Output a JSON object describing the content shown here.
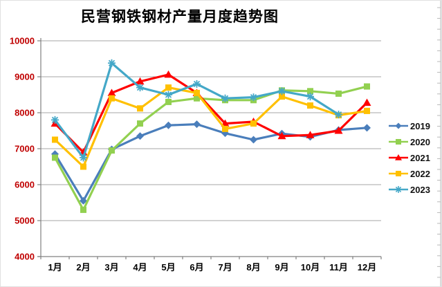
{
  "chart_data": {
    "type": "line",
    "title": "民营钢铁钢材产量月度趋势图",
    "categories": [
      "1月",
      "2月",
      "3月",
      "4月",
      "5月",
      "6月",
      "7月",
      "8月",
      "9月",
      "10月",
      "11月",
      "12月"
    ],
    "series": [
      {
        "name": "2019",
        "color": "#4A7EBB",
        "marker": "diamond",
        "values": [
          6850,
          5550,
          6980,
          7350,
          7650,
          7680,
          7430,
          7250,
          7420,
          7330,
          7520,
          7580
        ]
      },
      {
        "name": "2020",
        "color": "#92D050",
        "marker": "square",
        "values": [
          6750,
          5300,
          6950,
          7700,
          8300,
          8400,
          8350,
          8350,
          8620,
          8600,
          8530,
          8730
        ]
      },
      {
        "name": "2021",
        "color": "#FF0000",
        "marker": "triangle",
        "values": [
          7700,
          6900,
          8550,
          8870,
          9060,
          8550,
          7700,
          7750,
          7350,
          7380,
          7500,
          8280
        ]
      },
      {
        "name": "2022",
        "color": "#FFC000",
        "marker": "square",
        "values": [
          7250,
          6500,
          8400,
          8120,
          8700,
          8550,
          7550,
          7700,
          8450,
          8200,
          7930,
          8050
        ]
      },
      {
        "name": "2023",
        "color": "#44A8C8",
        "marker": "asterisk",
        "values": [
          7800,
          6750,
          9380,
          8700,
          8500,
          8800,
          8400,
          8430,
          8600,
          8450,
          7950,
          null
        ]
      }
    ],
    "xlabel": "",
    "ylabel": "",
    "ylim": [
      4000,
      10000
    ],
    "yticks": [
      4000,
      5000,
      6000,
      7000,
      8000,
      9000,
      10000
    ],
    "grid": true,
    "legend_position": "right",
    "colors": {
      "y_axis_label": "#C00000",
      "x_axis_label": "#000000",
      "gridline": "#A6A6A6",
      "axis_line": "#808080",
      "worksheet_edge": "#B8B8B8"
    }
  }
}
